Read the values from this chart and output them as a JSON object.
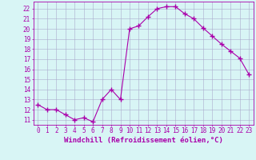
{
  "x": [
    0,
    1,
    2,
    3,
    4,
    5,
    6,
    7,
    8,
    9,
    10,
    11,
    12,
    13,
    14,
    15,
    16,
    17,
    18,
    19,
    20,
    21,
    22,
    23
  ],
  "y": [
    12.5,
    12.0,
    12.0,
    11.5,
    11.0,
    11.2,
    10.8,
    13.0,
    14.0,
    13.0,
    20.0,
    20.3,
    21.2,
    22.0,
    22.2,
    22.2,
    21.5,
    21.0,
    20.1,
    19.3,
    18.5,
    17.8,
    17.1,
    15.5
  ],
  "line_color": "#aa00aa",
  "marker": "+",
  "marker_size": 4,
  "bg_color": "#d8f5f5",
  "grid_color": "#aaaacc",
  "xlabel": "Windchill (Refroidissement éolien,°C)",
  "ylim": [
    10.5,
    22.7
  ],
  "xlim": [
    -0.5,
    23.5
  ],
  "yticks": [
    11,
    12,
    13,
    14,
    15,
    16,
    17,
    18,
    19,
    20,
    21,
    22
  ],
  "xticks": [
    0,
    1,
    2,
    3,
    4,
    5,
    6,
    7,
    8,
    9,
    10,
    11,
    12,
    13,
    14,
    15,
    16,
    17,
    18,
    19,
    20,
    21,
    22,
    23
  ],
  "axis_color": "#aa00aa",
  "tick_fontsize": 5.5,
  "label_fontsize": 6.5
}
